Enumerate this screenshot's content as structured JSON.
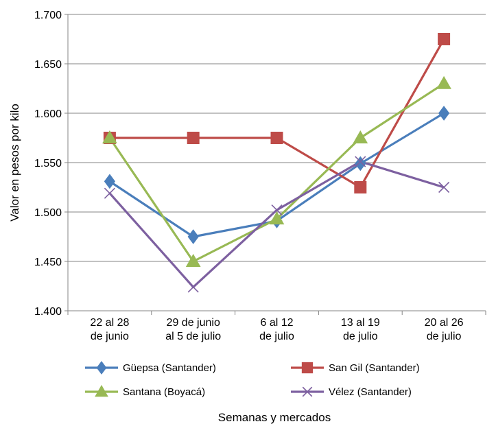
{
  "chart_data": {
    "type": "line",
    "title": "",
    "xlabel": "Semanas y mercados",
    "ylabel": "Valor en pesos por kilo",
    "ylim": [
      1400,
      1700
    ],
    "y_ticks": [
      1400,
      1450,
      1500,
      1550,
      1600,
      1650,
      1700
    ],
    "y_tick_labels": [
      "1.400",
      "1.450",
      "1.500",
      "1.550",
      "1.600",
      "1.650",
      "1.700"
    ],
    "grid": true,
    "legend_position": "bottom",
    "categories": [
      [
        "22 al 28",
        "de junio"
      ],
      [
        "29 de junio",
        "al 5 de julio"
      ],
      [
        "6 al 12",
        "de julio"
      ],
      [
        "13 al 19",
        "de julio"
      ],
      [
        "20 al 26",
        "de julio"
      ]
    ],
    "series": [
      {
        "name": "Güepsa (Santander)",
        "color": "#4A7EBB",
        "marker": "diamond",
        "values": [
          1531,
          1475,
          1491,
          1549,
          1600
        ]
      },
      {
        "name": "San Gil (Santander)",
        "color": "#BE4B48",
        "marker": "square",
        "values": [
          1575,
          1575,
          1575,
          1525,
          1675
        ]
      },
      {
        "name": "Santana (Boyacá)",
        "color": "#98B954",
        "marker": "triangle",
        "values": [
          1575,
          1450,
          1493,
          1575,
          1630
        ]
      },
      {
        "name": "Vélez (Santander)",
        "color": "#7D60A0",
        "marker": "x",
        "values": [
          1519,
          1424,
          1502,
          1551,
          1525
        ]
      }
    ]
  }
}
